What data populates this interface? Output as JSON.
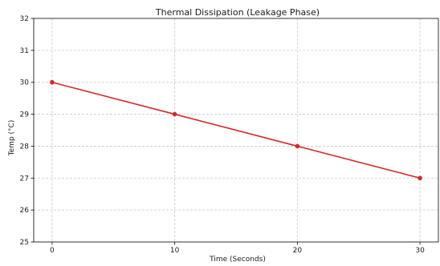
{
  "chart_data": {
    "type": "line",
    "title": "Thermal Dissipation (Leakage Phase)",
    "xlabel": "Time (Seconds)",
    "ylabel": "Temp (°C)",
    "x": [
      0,
      10,
      20,
      30
    ],
    "xticks": [
      0,
      10,
      20,
      30
    ],
    "yticks": [
      25,
      26,
      27,
      28,
      29,
      30,
      31,
      32
    ],
    "xlim": [
      -1.5,
      31.5
    ],
    "ylim": [
      25,
      32
    ],
    "grid": true,
    "series": [
      {
        "values": [
          30,
          29,
          28,
          27
        ],
        "color": "#d62728",
        "marker": "circle"
      }
    ]
  }
}
